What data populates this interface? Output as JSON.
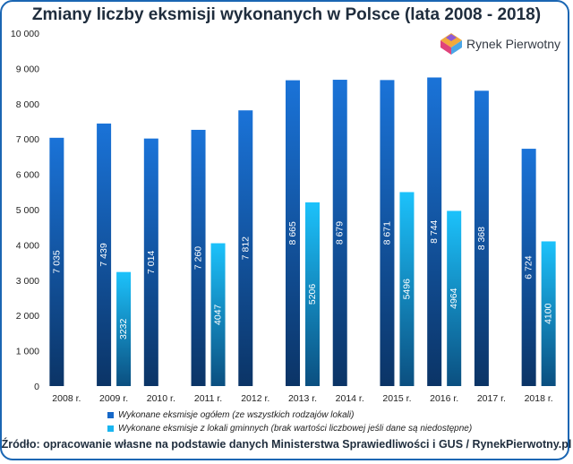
{
  "chart_data": {
    "type": "bar",
    "title": "Zmiany liczby eksmisji wykonanych w Polsce (lata 2008 - 2018)",
    "categories": [
      "2008 r.",
      "2009 r.",
      "2010 r.",
      "2011 r.",
      "2012 r.",
      "2013 r.",
      "2014 r.",
      "2015 r.",
      "2016 r.",
      "2017 r.",
      "2018 r."
    ],
    "series": [
      {
        "name": "Wykonane eksmisje ogółem (ze wszystkich rodzajów lokali)",
        "values": [
          7035,
          7439,
          7014,
          7260,
          7812,
          8665,
          8679,
          8671,
          8744,
          8368,
          6724
        ],
        "labels": [
          "7 035",
          "7 439",
          "7 014",
          "7 260",
          "7 812",
          "8 665",
          "8 679",
          "8 671",
          "8 744",
          "8 368",
          "6 724"
        ],
        "color": "#1668c8"
      },
      {
        "name": "Wykonane eksmisje z lokali gminnych (brak wartości liczbowej jeśli dane są niedostępne)",
        "values": [
          null,
          3232,
          null,
          4047,
          null,
          5206,
          null,
          5496,
          4964,
          null,
          4100
        ],
        "labels": [
          null,
          "3232",
          null,
          "4047",
          null,
          "5206",
          null,
          "5496",
          "4964",
          null,
          "4100"
        ],
        "color": "#19b5f0"
      }
    ],
    "ylim": [
      0,
      10000
    ],
    "yticks": [
      0,
      1000,
      2000,
      3000,
      4000,
      5000,
      6000,
      7000,
      8000,
      9000,
      10000
    ],
    "ytick_labels": [
      "0",
      "1 000",
      "2 000",
      "3 000",
      "4 000",
      "5 000",
      "6 000",
      "7 000",
      "8 000",
      "9 000",
      "10 000"
    ],
    "grid": false,
    "legend_position": "bottom"
  },
  "logo": {
    "text": "Rynek Pierwotny",
    "icon": "rynek-pierwotny-logo-icon"
  },
  "source": "Źródło: opracowanie własne na podstawie danych Ministerstwa Sprawiedliwości i GUS / RynekPierwotny.pl"
}
